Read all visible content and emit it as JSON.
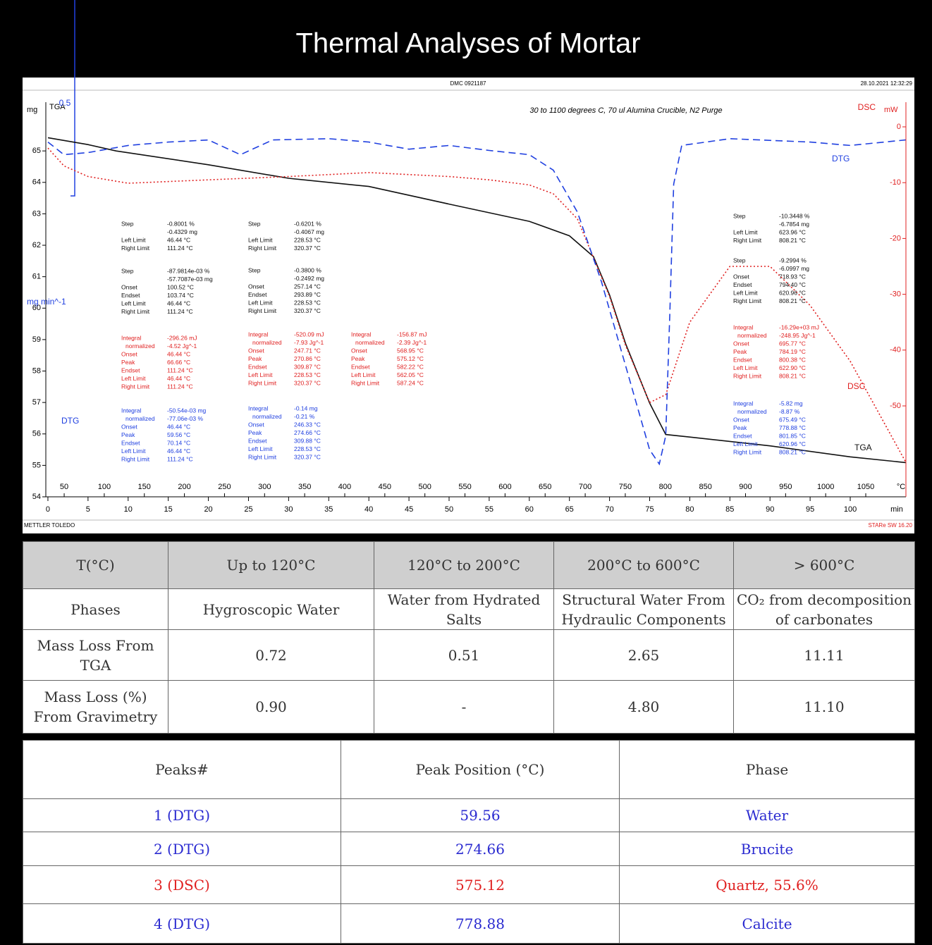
{
  "title": "Thermal Analyses of Mortar",
  "chart_data": {
    "type": "line",
    "header_center": "DMC 0921187",
    "header_right": "28.10.2021 12:32:29",
    "footer_left": "METTLER TOLEDO",
    "footer_right": "STARe SW 16.20",
    "subtitle": "30 to 1100 degrees C, 70 ul Alumina Crucible, N2 Purge",
    "y_axis_name": "TGA",
    "ylabel": "mg",
    "y2_axis_name": "DSC",
    "y2label": "mW",
    "y3_axis_name": "DTG",
    "y3label": "mg min^-1",
    "y3_scale_bar": 0.5,
    "xlabel": "min",
    "x2label": "°C",
    "xlim": [
      -0.26,
      106.94
    ],
    "xticks": [
      0,
      5,
      10,
      15,
      20,
      25,
      30,
      35,
      40,
      45,
      50,
      55,
      60,
      65,
      70,
      75,
      80,
      85,
      90,
      95,
      100
    ],
    "x2lim": [
      27.1,
      1100.1
    ],
    "x2ticks": [
      50,
      100,
      150,
      200,
      250,
      300,
      350,
      400,
      450,
      500,
      550,
      600,
      650,
      700,
      750,
      800,
      850,
      900,
      950,
      1000,
      1050
    ],
    "ylim": [
      54,
      66.55
    ],
    "yticks": [
      54,
      55,
      56,
      57,
      58,
      59,
      60,
      61,
      62,
      63,
      64,
      65
    ],
    "y2lim": [
      -66.29,
      4.42
    ],
    "y2ticks": [
      0,
      -10,
      -20,
      -30,
      -40,
      -50
    ],
    "y3lim": [
      -0.85,
      0.09
    ],
    "series": [
      {
        "name": "TGA",
        "color": "#111111",
        "line_style": "solid",
        "axis": "y",
        "x": [
          0,
          5,
          8.5,
          20,
          30,
          40,
          50,
          60,
          65,
          68,
          70,
          72,
          75,
          77,
          80,
          90,
          100,
          106.9
        ],
        "values": [
          65.42,
          65.2,
          65.0,
          64.56,
          64.13,
          63.87,
          63.31,
          62.76,
          62.3,
          61.64,
          60.42,
          58.87,
          56.98,
          55.98,
          55.9,
          55.62,
          55.27,
          55.09
        ]
      },
      {
        "name": "DSC",
        "color": "#e02020",
        "line_style": "dotted",
        "axis": "y2",
        "x": [
          0,
          2,
          5,
          10,
          20,
          30,
          40,
          50,
          55,
          60,
          63,
          66,
          70,
          72,
          75,
          77,
          80,
          85,
          90,
          95,
          100,
          106.9
        ],
        "values": [
          -3.8,
          -7.0,
          -8.9,
          -10.1,
          -9.5,
          -8.9,
          -8.2,
          -8.9,
          -9.5,
          -10.4,
          -12.0,
          -16.5,
          -30.4,
          -39.2,
          -49.4,
          -48,
          -35,
          -25,
          -25,
          -32,
          -42,
          -60
        ]
      },
      {
        "name": "DTG",
        "color": "#2040e0",
        "line_style": "dashed",
        "axis": "y3",
        "x": [
          0,
          2,
          5,
          10,
          15,
          20,
          24,
          28,
          35,
          40,
          45,
          50,
          55,
          60,
          63,
          66,
          69,
          72,
          75,
          76.2,
          77,
          77.5,
          78,
          79,
          85,
          95,
          100,
          106.9
        ],
        "values": [
          -0.005,
          -0.035,
          -0.03,
          -0.013,
          -0.005,
          0,
          -0.035,
          0,
          0.003,
          -0.005,
          -0.022,
          -0.013,
          -0.025,
          -0.035,
          -0.072,
          -0.172,
          -0.338,
          -0.538,
          -0.738,
          -0.772,
          -0.705,
          -0.42,
          -0.105,
          -0.013,
          0.003,
          -0.005,
          -0.013,
          0
        ]
      }
    ],
    "annotations": [
      {
        "color": "#111111",
        "rows": [
          [
            "Step",
            "-0.8001 %"
          ],
          [
            "",
            "-0.4329 mg"
          ],
          [
            "Left Limit",
            "46.44 °C"
          ],
          [
            "Right Limit",
            "111.24 °C"
          ]
        ]
      },
      {
        "color": "#111111",
        "rows": [
          [
            "Step",
            "-87.9814e-03 %"
          ],
          [
            "",
            "-57.7087e-03 mg"
          ],
          [
            "Onset",
            "100.52 °C"
          ],
          [
            "Endset",
            "103.74 °C"
          ],
          [
            "Left Limit",
            "46.44 °C"
          ],
          [
            "Right Limit",
            "111.24 °C"
          ]
        ]
      },
      {
        "color": "#e02020",
        "rows": [
          [
            "Integral",
            "-296.26 mJ"
          ],
          [
            "normalized",
            "-4.52 Jg^-1"
          ],
          [
            "Onset",
            "46.44 °C"
          ],
          [
            "Peak",
            "66.66 °C"
          ],
          [
            "Endset",
            "111.24 °C"
          ],
          [
            "Left Limit",
            "46.44 °C"
          ],
          [
            "Right Limit",
            "111.24 °C"
          ]
        ]
      },
      {
        "color": "#2040e0",
        "rows": [
          [
            "Integral",
            "-50.54e-03 mg"
          ],
          [
            "normalized",
            "-77.06e-03 %"
          ],
          [
            "Onset",
            "46.44 °C"
          ],
          [
            "Peak",
            "59.56 °C"
          ],
          [
            "Endset",
            "70.14 °C"
          ],
          [
            "Left Limit",
            "46.44 °C"
          ],
          [
            "Right Limit",
            "111.24 °C"
          ]
        ]
      },
      {
        "color": "#111111",
        "rows": [
          [
            "Step",
            "-0.6201 %"
          ],
          [
            "",
            "-0.4067 mg"
          ],
          [
            "Left Limit",
            "228.53 °C"
          ],
          [
            "Right Limit",
            "320.37 °C"
          ]
        ]
      },
      {
        "color": "#111111",
        "rows": [
          [
            "Step",
            "-0.3800 %"
          ],
          [
            "",
            "-0.2492 mg"
          ],
          [
            "Onset",
            "257.14 °C"
          ],
          [
            "Endset",
            "293.89 °C"
          ],
          [
            "Left Limit",
            "228.53 °C"
          ],
          [
            "Right Limit",
            "320.37 °C"
          ]
        ]
      },
      {
        "color": "#e02020",
        "rows": [
          [
            "Integral",
            "-520.09 mJ"
          ],
          [
            "normalized",
            "-7.93 Jg^-1"
          ],
          [
            "Onset",
            "247.71 °C"
          ],
          [
            "Peak",
            "270.86 °C"
          ],
          [
            "Endset",
            "309.87 °C"
          ],
          [
            "Left Limit",
            "228.53 °C"
          ],
          [
            "Right Limit",
            "320.37 °C"
          ]
        ]
      },
      {
        "color": "#2040e0",
        "rows": [
          [
            "Integral",
            "-0.14 mg"
          ],
          [
            "normalized",
            "-0.21 %"
          ],
          [
            "Onset",
            "246.33 °C"
          ],
          [
            "Peak",
            "274.66 °C"
          ],
          [
            "Endset",
            "309.88 °C"
          ],
          [
            "Left Limit",
            "228.53 °C"
          ],
          [
            "Right Limit",
            "320.37 °C"
          ]
        ]
      },
      {
        "color": "#e02020",
        "rows": [
          [
            "Integral",
            "-156.87 mJ"
          ],
          [
            "normalized",
            "-2.39 Jg^-1"
          ],
          [
            "Onset",
            "568.95 °C"
          ],
          [
            "Peak",
            "575.12 °C"
          ],
          [
            "Endset",
            "582.22 °C"
          ],
          [
            "Left Limit",
            "562.05 °C"
          ],
          [
            "Right Limit",
            "587.24 °C"
          ]
        ]
      },
      {
        "color": "#111111",
        "rows": [
          [
            "Step",
            "-10.3448 %"
          ],
          [
            "",
            "-6.7854 mg"
          ],
          [
            "Left Limit",
            "623.96 °C"
          ],
          [
            "Right Limit",
            "808.21 °C"
          ]
        ]
      },
      {
        "color": "#111111",
        "rows": [
          [
            "Step",
            "-9.2994 %"
          ],
          [
            "",
            "-6.0997 mg"
          ],
          [
            "Onset",
            "718.93 °C"
          ],
          [
            "Endset",
            "794.40 °C"
          ],
          [
            "Left Limit",
            "620.96 °C"
          ],
          [
            "Right Limit",
            "808.21 °C"
          ]
        ]
      },
      {
        "color": "#e02020",
        "rows": [
          [
            "Integral",
            "-16.29e+03 mJ"
          ],
          [
            "normalized",
            "-248.95 Jg^-1"
          ],
          [
            "Onset",
            "695.77 °C"
          ],
          [
            "Peak",
            "784.19 °C"
          ],
          [
            "Endset",
            "800.38 °C"
          ],
          [
            "Left Limit",
            "622.90 °C"
          ],
          [
            "Right Limit",
            "808.21 °C"
          ]
        ]
      },
      {
        "color": "#2040e0",
        "rows": [
          [
            "Integral",
            "-5.82 mg"
          ],
          [
            "normalized",
            "-8.87 %"
          ],
          [
            "Onset",
            "675.49 °C"
          ],
          [
            "Peak",
            "778.88 °C"
          ],
          [
            "Endset",
            "801.85 °C"
          ],
          [
            "Left Limit",
            "620.96 °C"
          ],
          [
            "Right Limit",
            "808.21 °C"
          ]
        ]
      }
    ]
  },
  "tables": [
    {
      "header": [
        "T(°C)",
        "Up to 120°C",
        "120°C to 200°C",
        "200°C to 600°C",
        "> 600°C"
      ],
      "rows": [
        [
          "Phases",
          "Hygroscopic Water",
          "Water from Hydrated Salts",
          "Structural Water From Hydraulic Components",
          "CO₂ from decomposition of carbonates"
        ],
        [
          "Mass Loss From TGA",
          "0.72",
          "0.51",
          "2.65",
          "11.11"
        ],
        [
          "Mass Loss (%) From Gravimetry",
          "0.90",
          "-",
          "4.80",
          "11.10"
        ]
      ]
    },
    {
      "header": [
        "Peaks#",
        "Peak Position (°C)",
        "Phase"
      ],
      "rows": [
        [
          "1 (DTG)",
          "59.56",
          "Water"
        ],
        [
          "2 (DTG)",
          "274.66",
          "Brucite"
        ],
        [
          "3 (DSC)",
          "575.12",
          "Quartz, 55.6%"
        ],
        [
          "4 (DTG)",
          "778.88",
          "Calcite"
        ]
      ],
      "row_colors": [
        "#2a2ad0",
        "#2a2ad0",
        "#e02020",
        "#2a2ad0"
      ]
    }
  ]
}
